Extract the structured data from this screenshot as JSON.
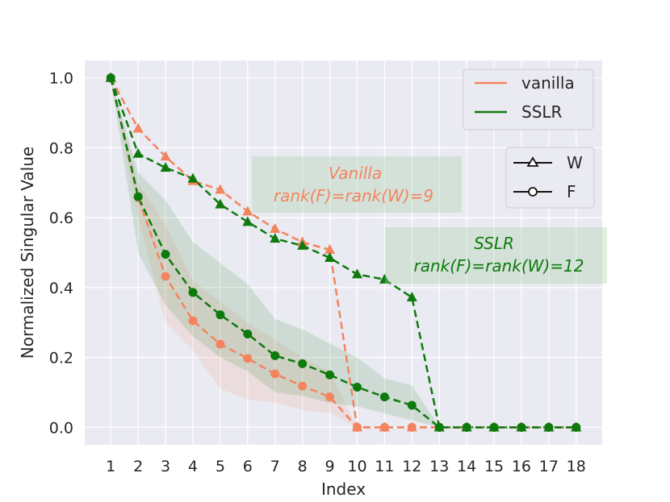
{
  "chart_data": {
    "type": "line",
    "title": "",
    "xlabel": "Index",
    "ylabel": "Normalized Singular Value",
    "x": [
      1,
      2,
      3,
      4,
      5,
      6,
      7,
      8,
      9,
      10,
      11,
      12,
      13,
      14,
      15,
      16,
      17,
      18
    ],
    "xlim": [
      0.05,
      18.95
    ],
    "ylim": [
      -0.05,
      1.05
    ],
    "yticks": [
      0.0,
      0.2,
      0.4,
      0.6,
      0.8,
      1.0
    ],
    "ytick_labels": [
      "0.0",
      "0.2",
      "0.4",
      "0.6",
      "0.8",
      "1.0"
    ],
    "xtick_labels": [
      "1",
      "2",
      "3",
      "4",
      "5",
      "6",
      "7",
      "8",
      "9",
      "10",
      "11",
      "12",
      "13",
      "14",
      "15",
      "16",
      "17",
      "18"
    ],
    "grid": true,
    "series": [
      {
        "name": "vanilla W",
        "method": "vanilla",
        "matrix": "W",
        "color": "#f4845f",
        "marker": "triangle",
        "values": [
          1.0,
          0.855,
          0.775,
          0.705,
          0.68,
          0.618,
          0.568,
          0.53,
          0.508,
          0,
          0,
          0,
          0,
          0,
          0,
          0,
          0,
          0
        ]
      },
      {
        "name": "vanilla F",
        "method": "vanilla",
        "matrix": "F",
        "color": "#f4845f",
        "marker": "circle",
        "values": [
          1.0,
          0.658,
          0.432,
          0.305,
          0.238,
          0.197,
          0.153,
          0.118,
          0.087,
          0,
          0,
          0,
          0,
          0,
          0,
          0,
          0,
          0
        ],
        "band_lower": [
          1.0,
          0.6,
          0.3,
          0.22,
          0.11,
          0.08,
          0.07,
          0.05,
          0.04,
          0,
          0,
          0,
          0,
          0,
          0,
          0,
          0,
          0
        ],
        "band_upper": [
          1.0,
          0.7,
          0.58,
          0.42,
          0.36,
          0.3,
          0.25,
          0.2,
          0.16,
          0,
          0,
          0,
          0,
          0,
          0,
          0,
          0,
          0
        ]
      },
      {
        "name": "SSLR W",
        "method": "SSLR",
        "matrix": "W",
        "color": "#0e7a0d",
        "marker": "triangle",
        "values": [
          1.0,
          0.783,
          0.743,
          0.712,
          0.638,
          0.588,
          0.54,
          0.52,
          0.485,
          0.438,
          0.423,
          0.372,
          0,
          0,
          0,
          0,
          0,
          0
        ]
      },
      {
        "name": "SSLR F",
        "method": "SSLR",
        "matrix": "F",
        "color": "#0e7a0d",
        "marker": "circle",
        "values": [
          1.0,
          0.66,
          0.495,
          0.386,
          0.322,
          0.267,
          0.205,
          0.182,
          0.15,
          0.115,
          0.087,
          0.063,
          0,
          0,
          0,
          0,
          0,
          0
        ],
        "band_lower": [
          1.0,
          0.5,
          0.35,
          0.26,
          0.2,
          0.16,
          0.1,
          0.09,
          0.07,
          0.06,
          0.04,
          0.02,
          0,
          0,
          0,
          0,
          0,
          0
        ],
        "band_upper": [
          1.0,
          0.73,
          0.65,
          0.53,
          0.47,
          0.41,
          0.31,
          0.28,
          0.24,
          0.2,
          0.14,
          0.12,
          0,
          0,
          0,
          0,
          0,
          0
        ]
      }
    ],
    "legend_method": {
      "position": "top-right",
      "entries": [
        {
          "label": "vanilla",
          "color": "#f4845f"
        },
        {
          "label": "SSLR",
          "color": "#0e7a0d"
        }
      ]
    },
    "legend_matrix": {
      "position": "right",
      "entries": [
        {
          "label": "W",
          "marker": "triangle"
        },
        {
          "label": "F",
          "marker": "circle"
        }
      ]
    },
    "annotations": [
      {
        "line1": "Vanilla",
        "line2": "rank(F)=rank(W)=9",
        "color": "#f4845f"
      },
      {
        "line1": "SSLR",
        "line2": "rank(F)=rank(W)=12",
        "color": "#0e7a0d"
      }
    ]
  }
}
